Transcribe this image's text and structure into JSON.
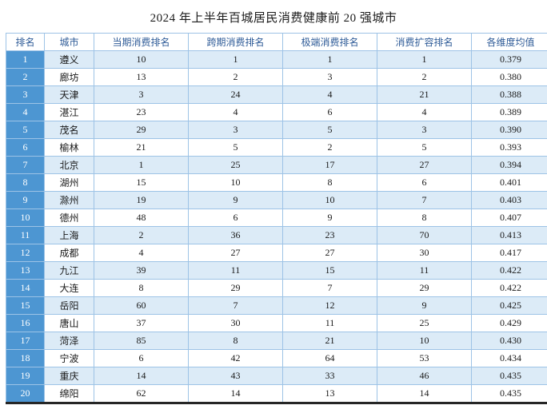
{
  "title": "2024 年上半年百城居民消费健康前 20 强城市",
  "chart_data": {
    "type": "table",
    "title": "2024 年上半年百城居民消费健康前 20 强城市",
    "columns": [
      "排名",
      "城市",
      "当期消费排名",
      "跨期消费排名",
      "极端消费排名",
      "消费扩容排名",
      "各维度均值"
    ],
    "rows": [
      [
        "1",
        "遵义",
        "10",
        "1",
        "1",
        "1",
        "0.379"
      ],
      [
        "2",
        "廊坊",
        "13",
        "2",
        "3",
        "2",
        "0.380"
      ],
      [
        "3",
        "天津",
        "3",
        "24",
        "4",
        "21",
        "0.388"
      ],
      [
        "4",
        "湛江",
        "23",
        "4",
        "6",
        "4",
        "0.389"
      ],
      [
        "5",
        "茂名",
        "29",
        "3",
        "5",
        "3",
        "0.390"
      ],
      [
        "6",
        "榆林",
        "21",
        "5",
        "2",
        "5",
        "0.393"
      ],
      [
        "7",
        "北京",
        "1",
        "25",
        "17",
        "27",
        "0.394"
      ],
      [
        "8",
        "湖州",
        "15",
        "10",
        "8",
        "6",
        "0.401"
      ],
      [
        "9",
        "滁州",
        "19",
        "9",
        "10",
        "7",
        "0.403"
      ],
      [
        "10",
        "德州",
        "48",
        "6",
        "9",
        "8",
        "0.407"
      ],
      [
        "11",
        "上海",
        "2",
        "36",
        "23",
        "70",
        "0.413"
      ],
      [
        "12",
        "成都",
        "4",
        "27",
        "27",
        "30",
        "0.417"
      ],
      [
        "13",
        "九江",
        "39",
        "11",
        "15",
        "11",
        "0.422"
      ],
      [
        "14",
        "大连",
        "8",
        "29",
        "7",
        "29",
        "0.422"
      ],
      [
        "15",
        "岳阳",
        "60",
        "7",
        "12",
        "9",
        "0.425"
      ],
      [
        "16",
        "唐山",
        "37",
        "30",
        "11",
        "25",
        "0.429"
      ],
      [
        "17",
        "菏泽",
        "85",
        "8",
        "21",
        "10",
        "0.430"
      ],
      [
        "18",
        "宁波",
        "6",
        "42",
        "64",
        "53",
        "0.434"
      ],
      [
        "19",
        "重庆",
        "14",
        "43",
        "33",
        "46",
        "0.435"
      ],
      [
        "20",
        "绵阳",
        "62",
        "14",
        "13",
        "14",
        "0.435"
      ]
    ]
  },
  "colors": {
    "rank_cell_bg": "#4d96d2",
    "row_band_bg": "#dcebf7",
    "border": "#9dc3e6",
    "header_text": "#2e5b97",
    "bottom_rule": "#262626"
  }
}
